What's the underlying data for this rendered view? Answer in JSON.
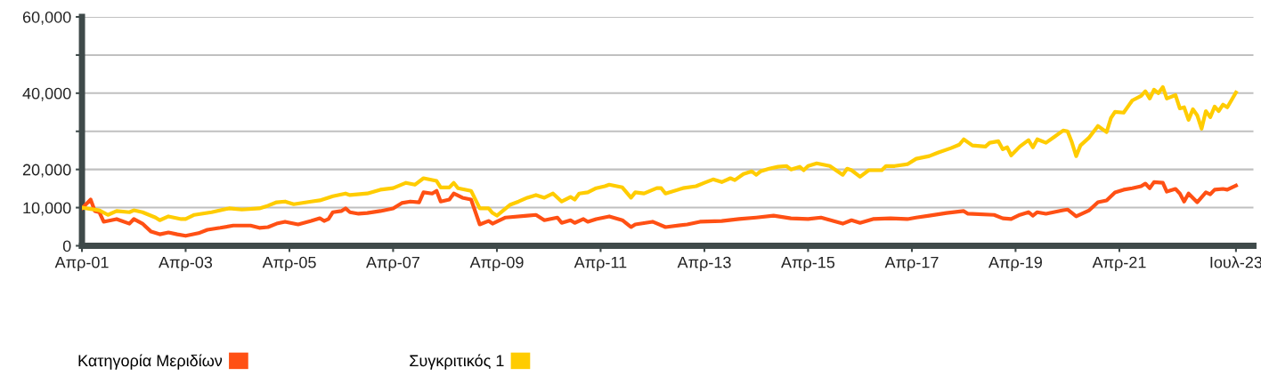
{
  "chart_data": {
    "type": "line",
    "xlim": [
      "2001-04",
      "2023-11"
    ],
    "xticks": [
      {
        "value": "2001-04",
        "label": "Απρ-01"
      },
      {
        "value": "2003-04",
        "label": "Απρ-03"
      },
      {
        "value": "2005-04",
        "label": "Απρ-05"
      },
      {
        "value": "2007-04",
        "label": "Απρ-07"
      },
      {
        "value": "2009-04",
        "label": "Απρ-09"
      },
      {
        "value": "2011-04",
        "label": "Απρ-11"
      },
      {
        "value": "2013-04",
        "label": "Απρ-13"
      },
      {
        "value": "2015-04",
        "label": "Απρ-15"
      },
      {
        "value": "2017-04",
        "label": "Απρ-17"
      },
      {
        "value": "2019-04",
        "label": "Απρ-19"
      },
      {
        "value": "2021-04",
        "label": "Απρ-21"
      },
      {
        "value": "2023-07",
        "label": "Ιουλ-23"
      }
    ],
    "ylim": [
      0,
      60000
    ],
    "yticks": [
      0,
      {
        "value": 10000,
        "label": "10,000"
      },
      {
        "value": 20000,
        "label": "20,000"
      },
      {
        "value": 30000,
        "label": null
      },
      {
        "value": 40000,
        "label": "40,000"
      },
      {
        "value": 50000,
        "label": null
      },
      {
        "value": 60000,
        "label": "60,000"
      }
    ],
    "grid": "y",
    "legend": "bottom",
    "marker": "none",
    "line_style": "solid",
    "series": [
      {
        "name": "Κατηγορία Μεριδίων",
        "color": "#ff5014",
        "x": [
          "2001-04",
          "2001-06",
          "2001-07",
          "2001-08",
          "2001-09",
          "2001-12",
          "2002-03",
          "2002-04",
          "2002-06",
          "2002-08",
          "2002-10",
          "2002-12",
          "2003-02",
          "2003-04",
          "2003-07",
          "2003-09",
          "2003-12",
          "2004-03",
          "2004-07",
          "2004-09",
          "2004-11",
          "2005-01",
          "2005-03",
          "2005-06",
          "2005-09",
          "2005-11",
          "2005-12",
          "2006-01",
          "2006-02",
          "2006-04",
          "2006-05",
          "2006-06",
          "2006-08",
          "2006-10",
          "2007-01",
          "2007-04",
          "2007-06",
          "2007-08",
          "2007-10",
          "2007-11",
          "2008-01",
          "2008-02",
          "2008-03",
          "2008-05",
          "2008-06",
          "2008-08",
          "2008-10",
          "2008-12",
          "2009-02",
          "2009-03",
          "2009-06",
          "2009-11",
          "2010-01",
          "2010-03",
          "2010-06",
          "2010-07",
          "2010-09",
          "2010-10",
          "2010-12",
          "2011-01",
          "2011-03",
          "2011-06",
          "2011-09",
          "2011-11",
          "2011-12",
          "2012-04",
          "2012-07",
          "2012-12",
          "2013-03",
          "2013-08",
          "2013-12",
          "2014-04",
          "2014-08",
          "2014-12",
          "2015-04",
          "2015-07",
          "2015-12",
          "2016-02",
          "2016-04",
          "2016-07",
          "2016-11",
          "2017-03",
          "2017-05",
          "2017-08",
          "2017-12",
          "2018-04",
          "2018-05",
          "2018-11",
          "2019-01",
          "2019-03",
          "2019-05",
          "2019-07",
          "2019-08",
          "2019-09",
          "2019-11",
          "2020-03",
          "2020-04",
          "2020-06",
          "2020-09",
          "2020-11",
          "2021-01",
          "2021-03",
          "2021-05",
          "2021-07",
          "2021-09",
          "2021-10",
          "2021-11",
          "2021-12",
          "2022-02",
          "2022-03",
          "2022-05",
          "2022-06",
          "2022-07",
          "2022-08",
          "2022-10",
          "2022-12",
          "2023-01",
          "2023-02",
          "2023-04",
          "2023-05",
          "2023-07"
        ],
        "values": [
          9800,
          12100,
          9100,
          8800,
          6300,
          7000,
          5800,
          7000,
          5800,
          3700,
          3000,
          3500,
          3000,
          2600,
          3300,
          4200,
          4700,
          5300,
          5300,
          4700,
          4900,
          5800,
          6300,
          5600,
          6500,
          7200,
          6500,
          7000,
          8800,
          9100,
          9800,
          8800,
          8400,
          8600,
          9100,
          9800,
          11200,
          11600,
          11400,
          14000,
          13700,
          14400,
          11600,
          12100,
          13700,
          12600,
          12100,
          5600,
          6500,
          5800,
          7400,
          7900,
          8100,
          6700,
          7400,
          6000,
          6700,
          6000,
          7000,
          6300,
          7000,
          7700,
          6700,
          4900,
          5600,
          6300,
          4900,
          5600,
          6300,
          6500,
          7000,
          7400,
          7900,
          7200,
          7000,
          7400,
          5800,
          6700,
          6000,
          7000,
          7200,
          7000,
          7400,
          7900,
          8600,
          9100,
          8400,
          8100,
          7200,
          7000,
          8100,
          8800,
          7900,
          8800,
          8400,
          9300,
          9500,
          7700,
          9300,
          11400,
          11900,
          14000,
          14700,
          15100,
          15600,
          16300,
          15100,
          16700,
          16500,
          14200,
          14900,
          13700,
          11600,
          13700,
          11400,
          14000,
          13500,
          14700,
          14900,
          14700,
          15800
        ]
      },
      {
        "name": "Συγκριτικός 1",
        "color": "#ffcc00",
        "x": [
          "2001-04",
          "2001-08",
          "2001-10",
          "2001-12",
          "2002-03",
          "2002-04",
          "2002-06",
          "2002-09",
          "2002-10",
          "2002-12",
          "2003-03",
          "2003-04",
          "2003-06",
          "2003-10",
          "2004-02",
          "2004-05",
          "2004-09",
          "2004-11",
          "2005-01",
          "2005-03",
          "2005-05",
          "2005-09",
          "2005-11",
          "2006-02",
          "2006-05",
          "2006-06",
          "2006-10",
          "2007-01",
          "2007-04",
          "2007-07",
          "2007-09",
          "2007-11",
          "2008-02",
          "2008-03",
          "2008-05",
          "2008-06",
          "2008-07",
          "2008-10",
          "2008-12",
          "2009-02",
          "2009-03",
          "2009-04",
          "2009-07",
          "2009-09",
          "2009-11",
          "2010-01",
          "2010-03",
          "2010-05",
          "2010-07",
          "2010-09",
          "2010-10",
          "2010-11",
          "2011-01",
          "2011-03",
          "2011-05",
          "2011-06",
          "2011-09",
          "2011-11",
          "2011-12",
          "2012-02",
          "2012-05",
          "2012-06",
          "2012-07",
          "2012-11",
          "2013-02",
          "2013-04",
          "2013-06",
          "2013-08",
          "2013-10",
          "2013-11",
          "2014-01",
          "2014-03",
          "2014-04",
          "2014-05",
          "2014-07",
          "2014-09",
          "2014-11",
          "2014-12",
          "2015-02",
          "2015-03",
          "2015-04",
          "2015-06",
          "2015-09",
          "2015-12",
          "2016-01",
          "2016-02",
          "2016-04",
          "2016-06",
          "2016-09",
          "2016-10",
          "2016-12",
          "2017-03",
          "2017-05",
          "2017-08",
          "2017-10",
          "2018-01",
          "2018-03",
          "2018-04",
          "2018-06",
          "2018-09",
          "2018-10",
          "2018-12",
          "2019-01",
          "2019-02",
          "2019-03",
          "2019-05",
          "2019-07",
          "2019-08",
          "2019-09",
          "2019-11",
          "2020-01",
          "2020-03",
          "2020-04",
          "2020-05",
          "2020-06",
          "2020-07",
          "2020-09",
          "2020-11",
          "2021-01",
          "2021-02",
          "2021-03",
          "2021-05",
          "2021-07",
          "2021-09",
          "2021-10",
          "2021-11",
          "2021-12",
          "2022-01",
          "2022-02",
          "2022-03",
          "2022-05",
          "2022-06",
          "2022-07",
          "2022-08",
          "2022-09",
          "2022-10",
          "2022-11",
          "2022-12",
          "2023-01",
          "2023-02",
          "2023-03",
          "2023-04",
          "2023-05",
          "2023-07"
        ],
        "values": [
          10000,
          9300,
          8100,
          9100,
          8800,
          9300,
          8800,
          7400,
          6700,
          7700,
          7000,
          7000,
          8100,
          8800,
          9800,
          9500,
          9800,
          10500,
          11400,
          11600,
          10900,
          11600,
          11900,
          13000,
          13700,
          13300,
          13700,
          14700,
          15100,
          16500,
          16000,
          17700,
          17000,
          15300,
          15300,
          16500,
          15100,
          14400,
          9800,
          9800,
          8600,
          7900,
          10700,
          11600,
          12600,
          13300,
          12600,
          13700,
          11600,
          12800,
          12100,
          13700,
          14000,
          15100,
          15600,
          16000,
          15300,
          12600,
          14000,
          13700,
          15100,
          15100,
          13700,
          15100,
          15600,
          16500,
          17400,
          16700,
          17700,
          17200,
          18800,
          19500,
          18600,
          19500,
          20200,
          20700,
          20900,
          20000,
          20700,
          19800,
          20900,
          21600,
          20900,
          18600,
          20200,
          19800,
          18100,
          19800,
          19800,
          20900,
          20900,
          21400,
          22800,
          23500,
          24400,
          25600,
          26500,
          27900,
          26300,
          26000,
          27000,
          27400,
          25300,
          25800,
          23700,
          26000,
          27700,
          25800,
          27900,
          27000,
          28600,
          30200,
          30000,
          27200,
          23500,
          26300,
          28400,
          31400,
          29800,
          33500,
          35100,
          34900,
          38100,
          39300,
          40500,
          38600,
          40900,
          40000,
          41600,
          38600,
          39500,
          36000,
          36300,
          33000,
          35800,
          34200,
          30700,
          35300,
          33700,
          36500,
          35300,
          37000,
          36300,
          40200
        ]
      }
    ]
  }
}
